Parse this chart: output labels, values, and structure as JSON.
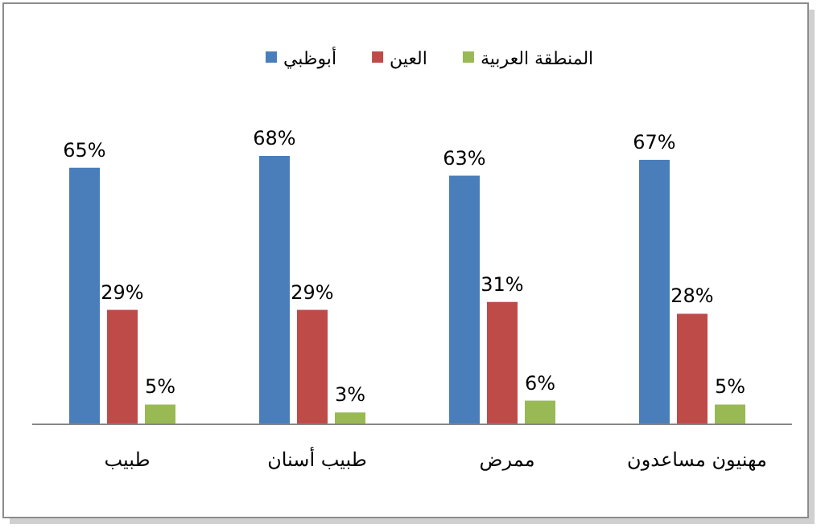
{
  "chart_data": {
    "type": "bar",
    "categories": [
      "طبيب",
      "طبيب أسنان",
      "ممرض",
      "مهنيون مساعدون"
    ],
    "series": [
      {
        "name": "أبوظبي",
        "color": "#4a7ebb",
        "values": [
          65,
          68,
          63,
          67
        ],
        "value_labels": [
          "65%",
          "68%",
          "63%",
          "67%"
        ]
      },
      {
        "name": "العين",
        "color": "#be4b48",
        "values": [
          29,
          29,
          31,
          28
        ],
        "value_labels": [
          "29%",
          "29%",
          "31%",
          "28%"
        ]
      },
      {
        "name": "المنطقة العربية",
        "color": "#98b954",
        "values": [
          5,
          3,
          6,
          5
        ],
        "value_labels": [
          "5%",
          "3%",
          "6%",
          "5%"
        ]
      }
    ],
    "legend": "top",
    "grid": false
  }
}
